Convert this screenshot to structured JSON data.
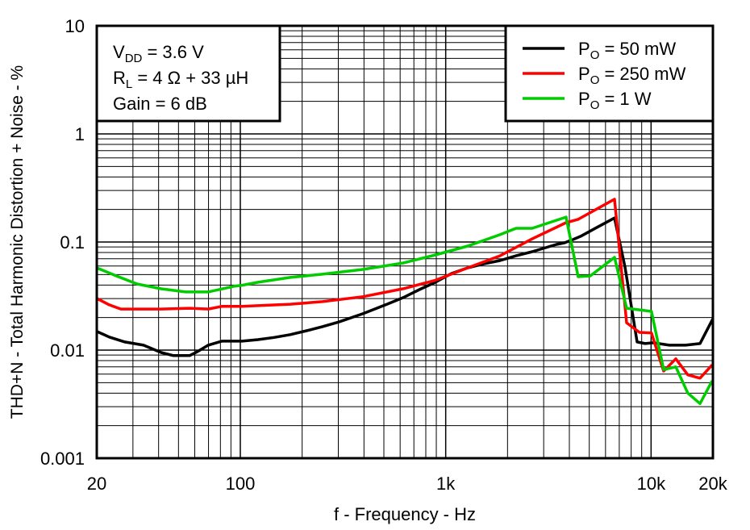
{
  "chart_data": {
    "type": "line",
    "title": "",
    "xlabel": "f - Frequency - Hz",
    "ylabel": "THD+N - Total Harmonic Distortion + Noise - %",
    "xscale": "log",
    "yscale": "log",
    "xlim": [
      20,
      20000
    ],
    "ylim": [
      0.001,
      10
    ],
    "grid": true,
    "x_ticks": [
      {
        "v": 20,
        "label": "20"
      },
      {
        "v": 100,
        "label": "100"
      },
      {
        "v": 1000,
        "label": "1k"
      },
      {
        "v": 10000,
        "label": "10k"
      },
      {
        "v": 20000,
        "label": "20k"
      }
    ],
    "y_ticks": [
      {
        "v": 10,
        "label": "10"
      },
      {
        "v": 1,
        "label": "1"
      },
      {
        "v": 0.1,
        "label": "0.1"
      },
      {
        "v": 0.01,
        "label": "0.01"
      },
      {
        "v": 0.001,
        "label": "0.001"
      }
    ],
    "conditions": [
      {
        "main": "V",
        "sub": "DD",
        "rest": " = 3.6 V"
      },
      {
        "main": "R",
        "sub": "L",
        "rest": " = 4 Ω + 33 µH"
      },
      {
        "main": "Gain = 6 dB",
        "sub": "",
        "rest": ""
      }
    ],
    "legend_position": "top-right",
    "series": [
      {
        "name": "P",
        "name_sub": "O",
        "name_rest": " = 50 mW",
        "color": "#000000",
        "x": [
          20,
          23,
          27.4,
          33.8,
          41.2,
          47.2,
          56.6,
          61.9,
          69.7,
          81.2,
          102,
          122,
          146,
          175,
          210,
          251,
          301,
          395,
          518,
          621,
          744,
          891,
          1068,
          1280,
          1533,
          1838,
          2201,
          2637,
          3460,
          3786,
          4143,
          4538,
          5435,
          6636,
          7465,
          8552,
          9355,
          10236,
          12272,
          14690,
          17300,
          20000
        ],
        "y": [
          0.0149,
          0.0132,
          0.0119,
          0.0111,
          0.0095,
          0.0089,
          0.0089,
          0.0097,
          0.0111,
          0.0121,
          0.0121,
          0.0125,
          0.0131,
          0.0139,
          0.0151,
          0.0165,
          0.0182,
          0.0217,
          0.0266,
          0.0306,
          0.0363,
          0.0424,
          0.0512,
          0.0577,
          0.0629,
          0.0673,
          0.0746,
          0.0813,
          0.095,
          0.0983,
          0.105,
          0.113,
          0.136,
          0.167,
          0.0587,
          0.0119,
          0.0115,
          0.0117,
          0.0111,
          0.0111,
          0.0115,
          0.0195
        ]
      },
      {
        "name": "P",
        "name_sub": "O",
        "name_rest": " = 250 mW",
        "color": "#ff0000",
        "x": [
          20,
          23,
          26.2,
          41.2,
          56.6,
          69.7,
          81.2,
          102,
          175,
          251,
          395,
          621,
          891,
          1280,
          1838,
          2637,
          3855,
          4414,
          6636,
          7600,
          8775,
          10046,
          11510,
          13190,
          15100,
          17300,
          19830
        ],
        "y": [
          0.0301,
          0.0262,
          0.024,
          0.024,
          0.0244,
          0.024,
          0.0254,
          0.0254,
          0.0266,
          0.0281,
          0.0312,
          0.037,
          0.0443,
          0.0577,
          0.0746,
          0.107,
          0.151,
          0.162,
          0.249,
          0.0179,
          0.0146,
          0.0144,
          0.0064,
          0.0083,
          0.0059,
          0.0055,
          0.0073
        ]
      },
      {
        "name": "P",
        "name_sub": "O",
        "name_rest": " = 1 W",
        "color": "#00cc00",
        "x": [
          20,
          24.9,
          31.4,
          41.2,
          54.1,
          69.7,
          93,
          102,
          122,
          175,
          251,
          395,
          621,
          891,
          1280,
          1838,
          2201,
          2637,
          3855,
          4414,
          5062,
          6636,
          7600,
          10046,
          11510,
          13190,
          15100,
          17300,
          19830
        ],
        "y": [
          0.0577,
          0.0486,
          0.0409,
          0.0369,
          0.0345,
          0.0345,
          0.0389,
          0.0398,
          0.0424,
          0.047,
          0.0504,
          0.0558,
          0.064,
          0.076,
          0.0918,
          0.117,
          0.134,
          0.134,
          0.17,
          0.0478,
          0.0486,
          0.0721,
          0.0244,
          0.0228,
          0.0066,
          0.007,
          0.004,
          0.0032,
          0.0052
        ]
      }
    ]
  }
}
